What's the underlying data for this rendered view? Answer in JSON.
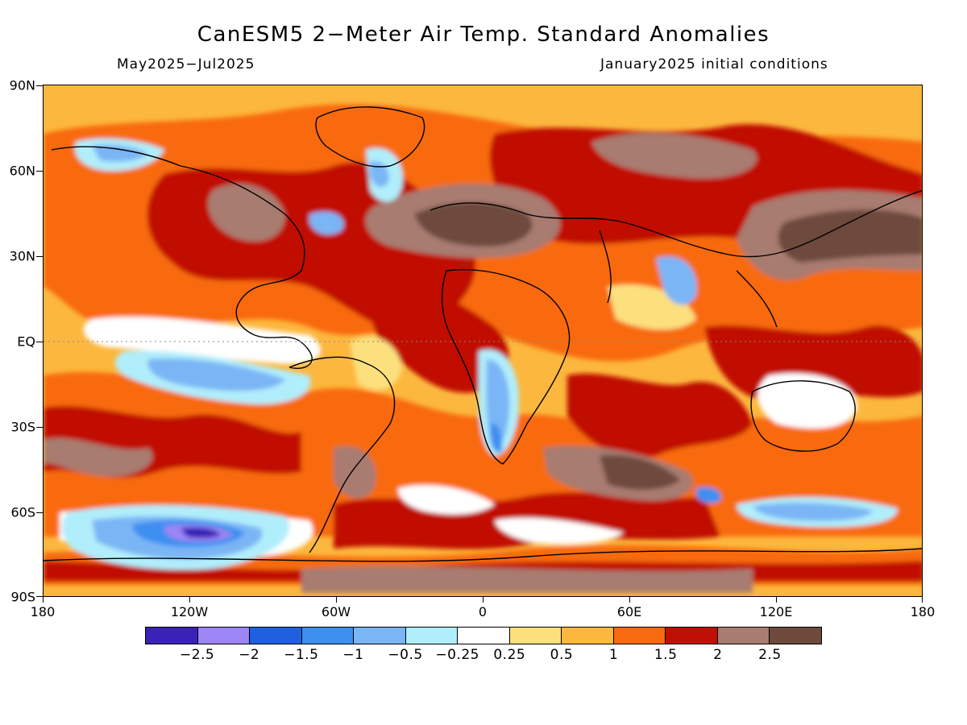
{
  "title": "CanESM5 2−Meter Air Temp. Standard Anomalies",
  "period": "May2025−Jul2025",
  "initial_conditions": "January2025 initial conditions",
  "lat_labels": [
    "90N",
    "60N",
    "30N",
    "EQ",
    "30S",
    "60S",
    "90S"
  ],
  "lon_labels": [
    "180",
    "120W",
    "60W",
    "0",
    "60E",
    "120E",
    "180"
  ],
  "colorbar": {
    "colors": [
      "#3a22b8",
      "#9c85f4",
      "#1f5fe0",
      "#3d8ff0",
      "#7ab5f5",
      "#b1eefb",
      "#ffffff",
      "#fce07e",
      "#fcb73e",
      "#f86a10",
      "#c01006",
      "#a87c70",
      "#6e4a3c"
    ],
    "labels": [
      "−2.5",
      "−2",
      "−1.5",
      "−1",
      "−0.5",
      "−0.25",
      "0.25",
      "0.5",
      "1",
      "1.5",
      "2",
      "2.5"
    ]
  }
}
